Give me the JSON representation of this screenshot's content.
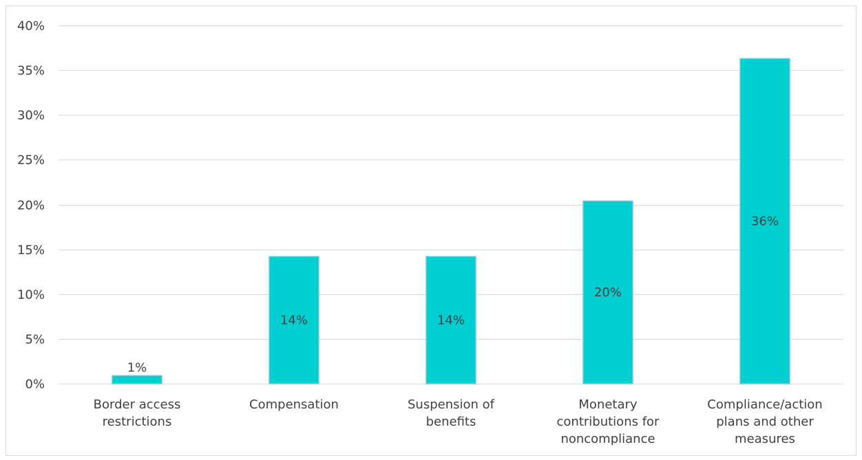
{
  "chart_data": {
    "type": "bar",
    "categories": [
      [
        "Border access",
        "restrictions"
      ],
      [
        "Compensation"
      ],
      [
        "Suspension of",
        "benefits"
      ],
      [
        "Monetary",
        "contributions for",
        "noncompliance"
      ],
      [
        "Compliance/action",
        "plans and other",
        "measures"
      ]
    ],
    "values": [
      1,
      14,
      14,
      20,
      36
    ],
    "bar_values": [
      0.9,
      14.2,
      14.2,
      20.4,
      36.3
    ],
    "data_labels": [
      "1%",
      "14%",
      "14%",
      "20%",
      "36%"
    ],
    "y_ticks": [
      "0%",
      "5%",
      "10%",
      "15%",
      "20%",
      "25%",
      "30%",
      "35%",
      "40%"
    ],
    "ylim": [
      0,
      40
    ],
    "grid": true,
    "legend": "none",
    "title": "",
    "xlabel": "",
    "ylabel": "",
    "colors": {
      "bar_fill": "#00cfd1",
      "bar_stroke": "#7fc9d6",
      "grid": "#d9d9d9",
      "text": "#404040"
    }
  }
}
